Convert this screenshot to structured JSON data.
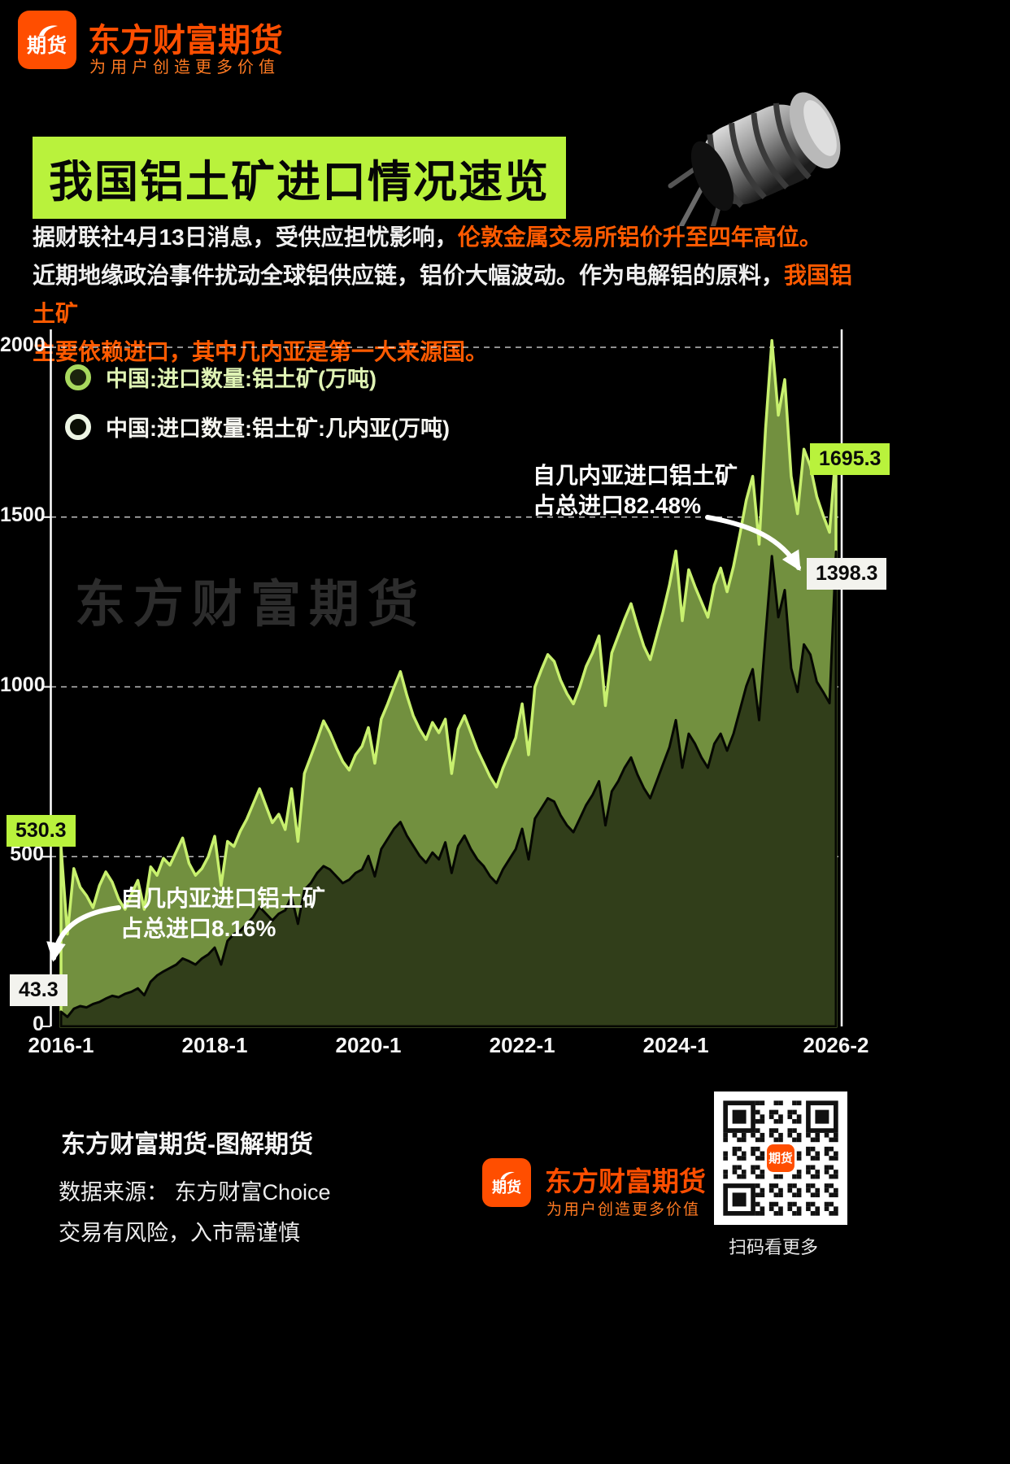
{
  "brand": {
    "logo_text": "期货",
    "name": "东方财富期货",
    "tagline": "为用户创造更多价值",
    "orange": "#ff4e00",
    "green": "#b9f23c"
  },
  "title": "我国铝土矿进口情况速览",
  "intro": {
    "segments": [
      {
        "text": "据财联社4月13日消息，受供应担忧影响，",
        "color": "white"
      },
      {
        "text": "伦敦金属交易所铝价升至四年高位。",
        "color": "orange"
      },
      {
        "text": "近期地缘政治事件扰动全球铝供应链，铝价大幅波动。作为电解铝的原料，",
        "color": "white"
      },
      {
        "text": "我国铝土矿",
        "color": "orange"
      },
      {
        "text": "主要依赖进口，其中几内亚是第一大来源国。",
        "color": "orange"
      }
    ]
  },
  "chart_data": {
    "type": "area",
    "x_unit": "month",
    "x_start": "2016-1",
    "x_end": "2026-2",
    "x_ticks": [
      "2016-1",
      "2018-1",
      "2020-1",
      "2022-1",
      "2024-1",
      "2026-2"
    ],
    "x_tick_month_index": [
      0,
      24,
      48,
      72,
      96,
      121
    ],
    "ylim": [
      0,
      2000
    ],
    "y_ticks": [
      0,
      500,
      1000,
      1500,
      2000
    ],
    "grid": "dashed-horizontal",
    "legend_position": "top-left",
    "watermark": "东方财富期货",
    "series": [
      {
        "name": "中国:进口数量:铝土矿(万吨)",
        "color_fill": "#72903f",
        "color_line": "#c8f06e",
        "values": [
          530.3,
          272,
          465,
          410,
          385,
          350,
          415,
          455,
          425,
          375,
          345,
          390,
          430,
          345,
          470,
          445,
          495,
          475,
          515,
          555,
          480,
          445,
          465,
          500,
          560,
          415,
          545,
          530,
          575,
          610,
          655,
          700,
          650,
          600,
          625,
          580,
          700,
          545,
          745,
          795,
          845,
          900,
          865,
          820,
          780,
          755,
          800,
          825,
          880,
          775,
          905,
          950,
          1000,
          1045,
          975,
          915,
          875,
          845,
          895,
          865,
          905,
          745,
          875,
          915,
          865,
          815,
          775,
          735,
          705,
          760,
          805,
          850,
          950,
          800,
          1000,
          1050,
          1095,
          1075,
          1020,
          980,
          950,
          1000,
          1060,
          1100,
          1150,
          945,
          1100,
          1150,
          1200,
          1245,
          1180,
          1120,
          1080,
          1150,
          1220,
          1300,
          1400,
          1195,
          1345,
          1295,
          1250,
          1205,
          1300,
          1350,
          1280,
          1355,
          1450,
          1550,
          1620,
          1420,
          1760,
          2020,
          1800,
          1905,
          1620,
          1510,
          1700,
          1650,
          1560,
          1505,
          1455,
          1695.3
        ]
      },
      {
        "name": "中国:进口数量:铝土矿:几内亚(万吨)",
        "color_fill": "#313e1a",
        "color_line": "#050702",
        "values": [
          43.3,
          28,
          52,
          60,
          56,
          66,
          72,
          82,
          90,
          86,
          96,
          102,
          112,
          92,
          132,
          150,
          162,
          172,
          182,
          200,
          192,
          182,
          200,
          212,
          232,
          182,
          252,
          272,
          282,
          302,
          322,
          352,
          332,
          312,
          332,
          342,
          382,
          302,
          402,
          422,
          452,
          472,
          462,
          442,
          422,
          432,
          452,
          462,
          502,
          442,
          522,
          552,
          582,
          602,
          562,
          532,
          502,
          482,
          512,
          492,
          542,
          452,
          532,
          562,
          522,
          492,
          472,
          442,
          422,
          462,
          492,
          522,
          582,
          492,
          612,
          642,
          672,
          662,
          622,
          592,
          572,
          612,
          652,
          682,
          722,
          592,
          692,
          722,
          762,
          792,
          742,
          702,
          672,
          722,
          772,
          822,
          902,
          762,
          862,
          832,
          792,
          762,
          832,
          862,
          812,
          862,
          932,
          1002,
          1052,
          902,
          1152,
          1385,
          1205,
          1285,
          1055,
          985,
          1125,
          1095,
          1015,
          985,
          952,
          1398.3
        ]
      }
    ],
    "point_labels": [
      {
        "text": "530.3",
        "series": 0,
        "position": "start",
        "style": "green"
      },
      {
        "text": "43.3",
        "series": 1,
        "position": "start",
        "style": "white"
      },
      {
        "text": "1695.3",
        "series": 0,
        "position": "end",
        "style": "green"
      },
      {
        "text": "1398.3",
        "series": 1,
        "position": "end",
        "style": "white"
      }
    ],
    "annotations": [
      {
        "lines": [
          "自几内亚进口铝土矿",
          "占总进口82.48%"
        ],
        "target": "end-guinea-share"
      },
      {
        "lines": [
          "自几内亚进口铝土矿",
          "占总进口8.16%"
        ],
        "target": "start-guinea-share"
      }
    ]
  },
  "footer": {
    "title": "东方财富期货-图解期货",
    "source": "数据来源： 东方财富Choice",
    "disclaimer": "交易有风险，入市需谨慎",
    "qr_caption": "扫码看更多"
  }
}
